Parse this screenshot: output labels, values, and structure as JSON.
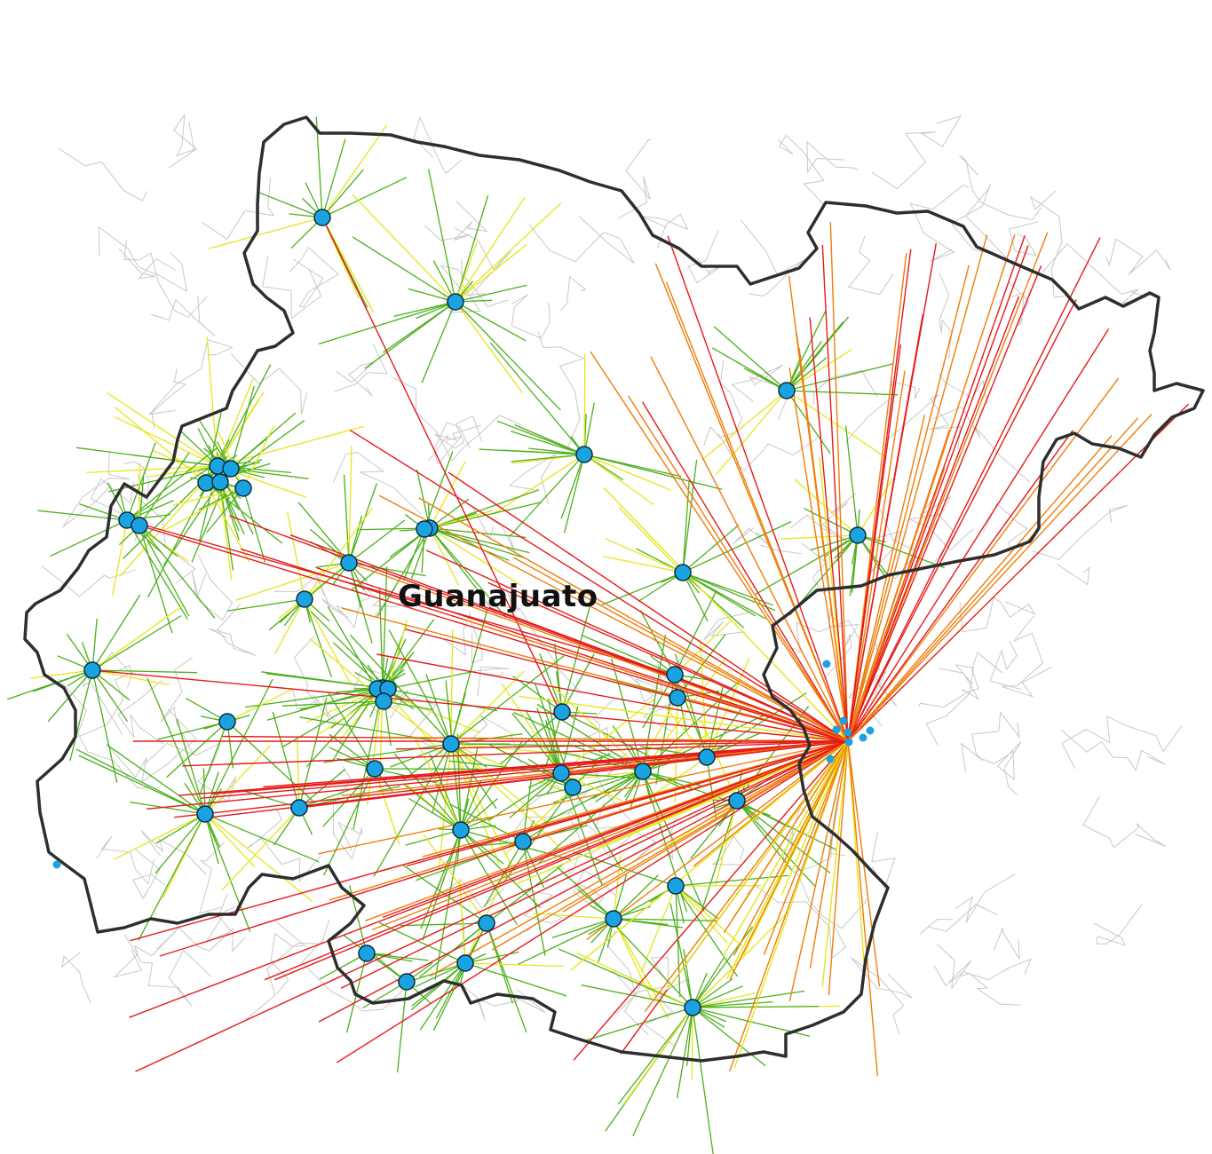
{
  "map": {
    "region_label": "Guanajuato",
    "colors": {
      "boundary": "#2e2e2e",
      "municipal_lines": "#c8c8c8",
      "facility_fill": "#1aa3e0",
      "facility_stroke": "#0b2a3a",
      "link_short": "#4caf1a",
      "link_medium": "#e6e61a",
      "link_long": "#f07d0a",
      "link_very_long": "#e51a1a"
    },
    "marker_icon": "facility-dot-icon"
  }
}
